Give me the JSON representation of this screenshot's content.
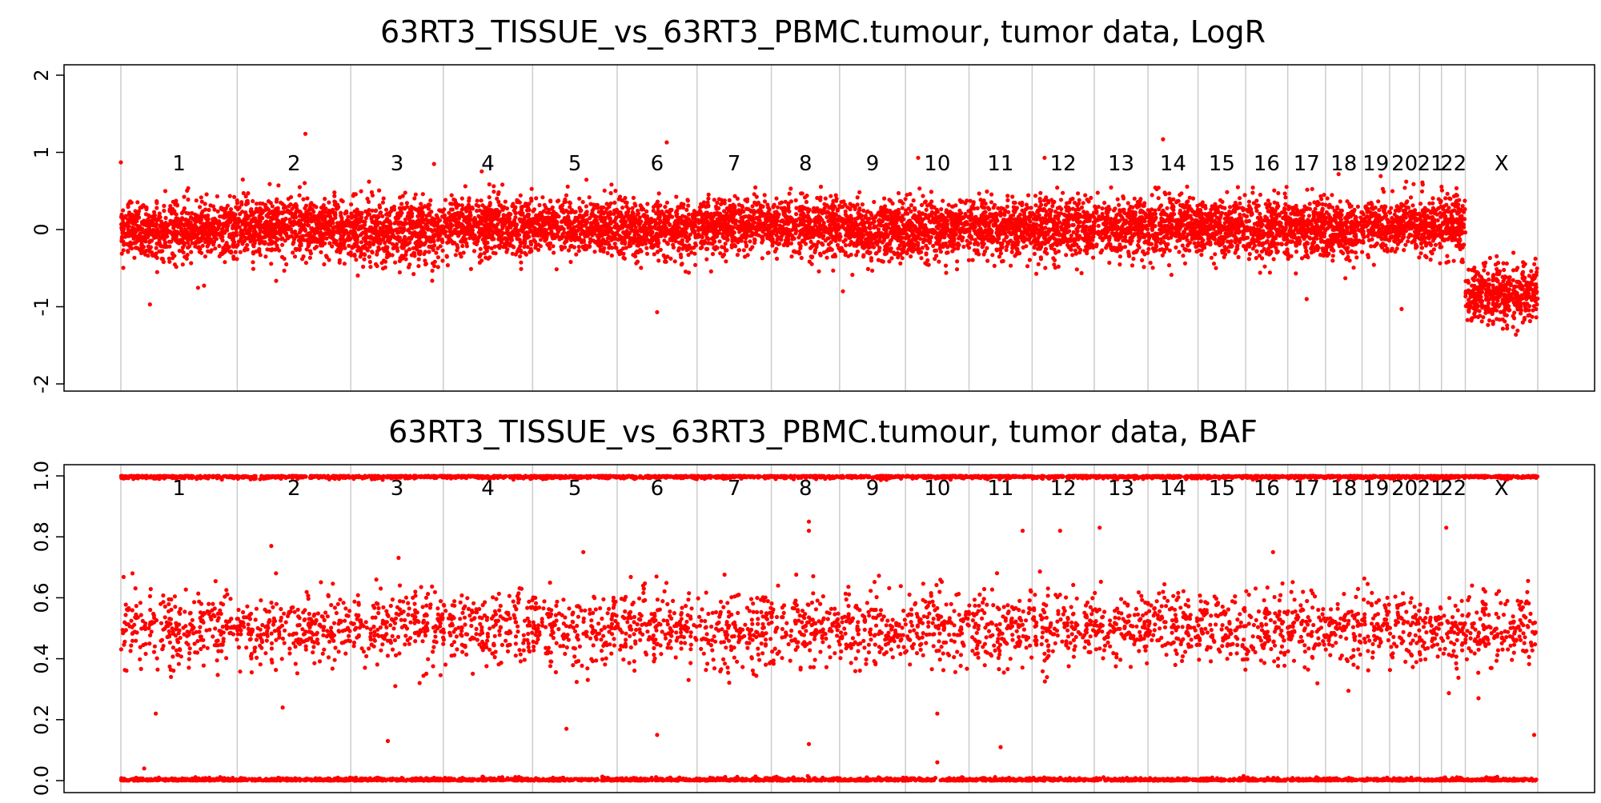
{
  "chart_data": [
    {
      "type": "scatter",
      "title": "63RT3_TISSUE_vs_63RT3_PBMC.tumour, tumor data, LogR",
      "xlabel": "",
      "ylabel": "",
      "ylim": [
        -2,
        2
      ],
      "yticks": [
        -2,
        -1,
        0,
        1,
        2
      ],
      "point_color": "#ff0000",
      "separator_color": "#cccccc",
      "chromosomes": [
        "1",
        "2",
        "3",
        "4",
        "5",
        "6",
        "7",
        "8",
        "9",
        "10",
        "11",
        "12",
        "13",
        "14",
        "15",
        "16",
        "17",
        "18",
        "19",
        "20",
        "21",
        "22",
        "X"
      ],
      "chrom_sizes_mb": [
        249,
        243,
        198,
        191,
        181,
        171,
        159,
        146,
        141,
        136,
        135,
        133,
        115,
        107,
        102,
        90,
        81,
        78,
        59,
        64,
        47,
        51,
        155
      ],
      "segments": [
        {
          "chrom": "1",
          "logr_mean": 0.0,
          "logr_sd": 0.18
        },
        {
          "chrom": "2",
          "logr_mean": 0.03,
          "logr_sd": 0.18
        },
        {
          "chrom": "3",
          "logr_mean": -0.02,
          "logr_sd": 0.2
        },
        {
          "chrom": "4",
          "logr_mean": 0.04,
          "logr_sd": 0.19
        },
        {
          "chrom": "5",
          "logr_mean": 0.03,
          "logr_sd": 0.17
        },
        {
          "chrom": "6",
          "logr_mean": 0.0,
          "logr_sd": 0.18
        },
        {
          "chrom": "7",
          "logr_mean": 0.04,
          "logr_sd": 0.17
        },
        {
          "chrom": "8",
          "logr_mean": 0.05,
          "logr_sd": 0.18
        },
        {
          "chrom": "9",
          "logr_mean": -0.03,
          "logr_sd": 0.19
        },
        {
          "chrom": "10",
          "logr_mean": 0.0,
          "logr_sd": 0.18
        },
        {
          "chrom": "11",
          "logr_mean": 0.03,
          "logr_sd": 0.17
        },
        {
          "chrom": "12",
          "logr_mean": 0.02,
          "logr_sd": 0.19
        },
        {
          "chrom": "13",
          "logr_mean": 0.04,
          "logr_sd": 0.18
        },
        {
          "chrom": "14",
          "logr_mean": 0.05,
          "logr_sd": 0.18
        },
        {
          "chrom": "15",
          "logr_mean": 0.02,
          "logr_sd": 0.18
        },
        {
          "chrom": "16",
          "logr_mean": 0.0,
          "logr_sd": 0.2
        },
        {
          "chrom": "17",
          "logr_mean": 0.02,
          "logr_sd": 0.18
        },
        {
          "chrom": "18",
          "logr_mean": 0.0,
          "logr_sd": 0.19
        },
        {
          "chrom": "19",
          "logr_mean": 0.05,
          "logr_sd": 0.17
        },
        {
          "chrom": "20",
          "logr_mean": 0.05,
          "logr_sd": 0.17
        },
        {
          "chrom": "21",
          "logr_mean": 0.05,
          "logr_sd": 0.17
        },
        {
          "chrom": "22",
          "logr_mean": 0.05,
          "logr_sd": 0.18
        },
        {
          "chrom": "X",
          "logr_mean": -0.85,
          "logr_sd": 0.17
        }
      ],
      "outliers": [
        {
          "chrom": "1",
          "pos": 0.0,
          "value": 0.87
        },
        {
          "chrom": "1",
          "pos": 0.25,
          "value": -0.97
        },
        {
          "chrom": "2",
          "pos": 0.6,
          "value": 1.24
        },
        {
          "chrom": "3",
          "pos": 0.9,
          "value": 0.85
        },
        {
          "chrom": "6",
          "pos": 0.62,
          "value": 1.13
        },
        {
          "chrom": "6",
          "pos": 0.5,
          "value": -1.07
        },
        {
          "chrom": "9",
          "pos": 0.05,
          "value": -0.8
        },
        {
          "chrom": "10",
          "pos": 0.2,
          "value": 0.93
        },
        {
          "chrom": "12",
          "pos": 0.2,
          "value": 0.93
        },
        {
          "chrom": "14",
          "pos": 0.3,
          "value": 1.17
        },
        {
          "chrom": "17",
          "pos": 0.5,
          "value": -0.9
        },
        {
          "chrom": "20",
          "pos": 0.4,
          "value": -1.03
        }
      ]
    },
    {
      "type": "scatter",
      "title": "63RT3_TISSUE_vs_63RT3_PBMC.tumour, tumor data, BAF",
      "xlabel": "",
      "ylabel": "",
      "ylim": [
        0,
        1
      ],
      "yticks": [
        0.0,
        0.2,
        0.4,
        0.6,
        0.8,
        1.0
      ],
      "ytick_labels": [
        "0.0",
        "0.2",
        "0.4",
        "0.6",
        "0.8",
        "1.0"
      ],
      "point_color": "#ff0000",
      "separator_color": "#cccccc",
      "chromosomes": [
        "1",
        "2",
        "3",
        "4",
        "5",
        "6",
        "7",
        "8",
        "9",
        "10",
        "11",
        "12",
        "13",
        "14",
        "15",
        "16",
        "17",
        "18",
        "19",
        "20",
        "21",
        "22",
        "X"
      ],
      "chrom_sizes_mb": [
        249,
        243,
        198,
        191,
        181,
        171,
        159,
        146,
        141,
        136,
        135,
        133,
        115,
        107,
        102,
        90,
        81,
        78,
        59,
        64,
        47,
        51,
        155
      ],
      "bands": [
        {
          "name": "homozygous_low",
          "value": 0.0
        },
        {
          "name": "heterozygous",
          "value": 0.5,
          "sd": 0.06
        },
        {
          "name": "homozygous_high",
          "value": 1.0
        }
      ],
      "outliers": [
        {
          "chrom": "1",
          "pos": 0.1,
          "value": 0.68
        },
        {
          "chrom": "1",
          "pos": 0.3,
          "value": 0.22
        },
        {
          "chrom": "1",
          "pos": 0.2,
          "value": 0.04
        },
        {
          "chrom": "2",
          "pos": 0.3,
          "value": 0.77
        },
        {
          "chrom": "2",
          "pos": 0.4,
          "value": 0.24
        },
        {
          "chrom": "3",
          "pos": 0.4,
          "value": 0.13
        },
        {
          "chrom": "5",
          "pos": 0.6,
          "value": 0.75
        },
        {
          "chrom": "5",
          "pos": 0.4,
          "value": 0.17
        },
        {
          "chrom": "6",
          "pos": 0.5,
          "value": 0.15
        },
        {
          "chrom": "8",
          "pos": 0.55,
          "value": 0.85
        },
        {
          "chrom": "8",
          "pos": 0.55,
          "value": 0.82
        },
        {
          "chrom": "8",
          "pos": 0.55,
          "value": 0.12
        },
        {
          "chrom": "10",
          "pos": 0.5,
          "value": 0.22
        },
        {
          "chrom": "10",
          "pos": 0.5,
          "value": 0.06
        },
        {
          "chrom": "11",
          "pos": 0.85,
          "value": 0.82
        },
        {
          "chrom": "11",
          "pos": 0.5,
          "value": 0.11
        },
        {
          "chrom": "12",
          "pos": 0.45,
          "value": 0.82
        },
        {
          "chrom": "13",
          "pos": 0.1,
          "value": 0.83
        },
        {
          "chrom": "16",
          "pos": 0.65,
          "value": 0.75
        },
        {
          "chrom": "22",
          "pos": 0.2,
          "value": 0.83
        },
        {
          "chrom": "X",
          "pos": 0.95,
          "value": 0.15
        }
      ]
    }
  ]
}
